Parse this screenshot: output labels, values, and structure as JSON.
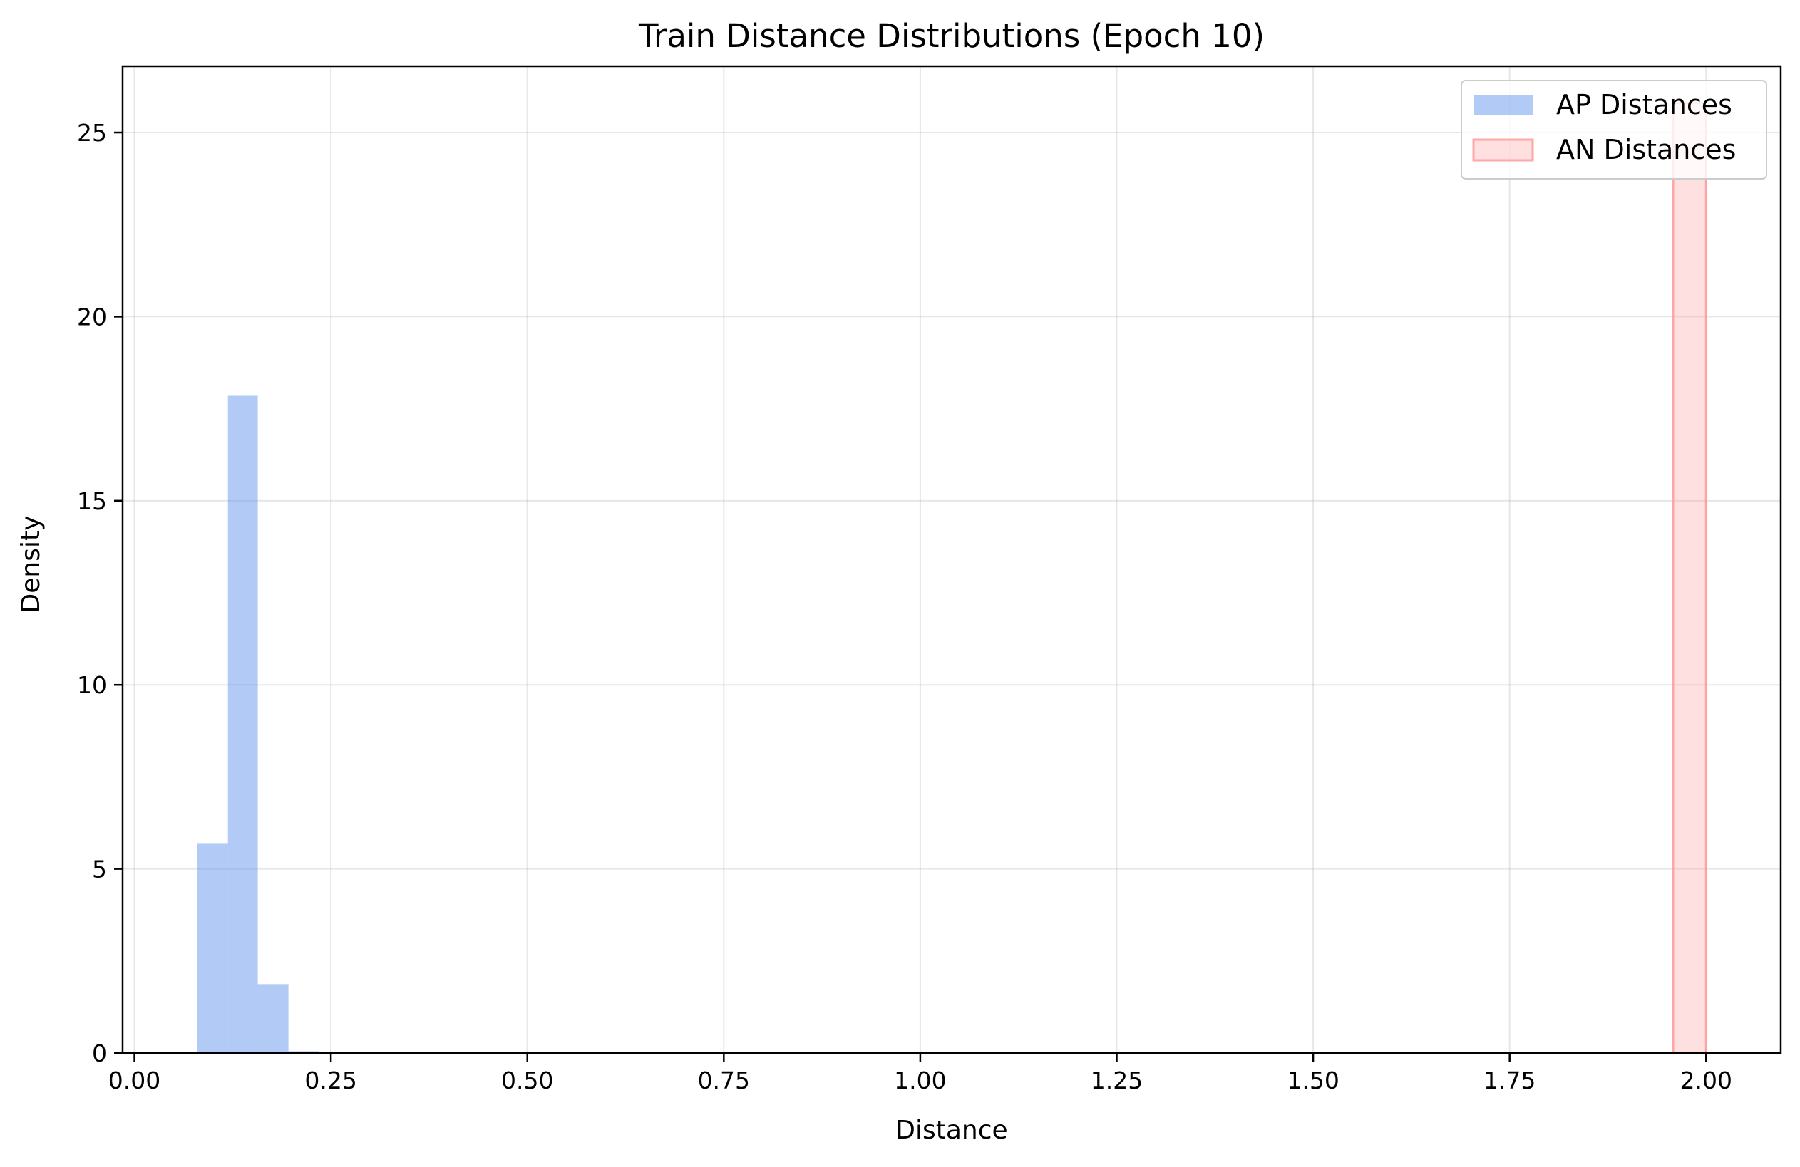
{
  "chart_data": {
    "type": "bar",
    "title": "Train Distance Distributions (Epoch 10)",
    "xlabel": "Distance",
    "ylabel": "Density",
    "xlim": [
      -0.015,
      2.095
    ],
    "ylim": [
      0,
      26.8
    ],
    "xticks": [
      0.0,
      0.25,
      0.5,
      0.75,
      1.0,
      1.25,
      1.5,
      1.75,
      2.0
    ],
    "xtick_labels": [
      "0.00",
      "0.25",
      "0.50",
      "0.75",
      "1.00",
      "1.25",
      "1.50",
      "1.75",
      "2.00"
    ],
    "yticks": [
      0,
      5,
      10,
      15,
      20,
      25
    ],
    "ytick_labels": [
      "0",
      "5",
      "10",
      "15",
      "20",
      "25"
    ],
    "grid": true,
    "legend_position": "top-right",
    "series": [
      {
        "name": "AP Distances",
        "color": "#6495ED",
        "opacity": 0.5,
        "bins": [
          {
            "x0": 0.08,
            "x1": 0.119,
            "value": 5.7
          },
          {
            "x0": 0.119,
            "x1": 0.157,
            "value": 17.85
          },
          {
            "x0": 0.157,
            "x1": 0.196,
            "value": 1.87
          },
          {
            "x0": 0.196,
            "x1": 0.235,
            "value": 0.05
          }
        ]
      },
      {
        "name": "AN Distances",
        "color": "#FF9999",
        "edge_color": "#FF9999",
        "opacity": 0.3,
        "bins": [
          {
            "x0": 1.958,
            "x1": 2.0,
            "value": 25.8
          }
        ]
      }
    ]
  }
}
